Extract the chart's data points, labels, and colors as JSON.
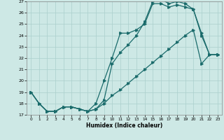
{
  "xlabel": "Humidex (Indice chaleur)",
  "xlim": [
    -0.5,
    23.5
  ],
  "ylim": [
    17,
    27
  ],
  "yticks": [
    17,
    18,
    19,
    20,
    21,
    22,
    23,
    24,
    25,
    26,
    27
  ],
  "xticks": [
    0,
    1,
    2,
    3,
    4,
    5,
    6,
    7,
    8,
    9,
    10,
    11,
    12,
    13,
    14,
    15,
    16,
    17,
    18,
    19,
    20,
    21,
    22,
    23
  ],
  "background_color": "#cde8e5",
  "grid_color": "#aacfcc",
  "line_color": "#1a6b6b",
  "line1_x": [
    0,
    1,
    2,
    3,
    4,
    5,
    6,
    7,
    8,
    9,
    10,
    11,
    12,
    13,
    14,
    15,
    16,
    17,
    18,
    19,
    20,
    21,
    22,
    23
  ],
  "line1_y": [
    19,
    18,
    17.3,
    17.3,
    17.7,
    17.7,
    17.5,
    17.3,
    18.0,
    20.0,
    22.0,
    24.2,
    24.2,
    24.5,
    25.0,
    26.8,
    26.8,
    26.5,
    26.7,
    26.5,
    26.3,
    24.2,
    22.3,
    22.3
  ],
  "line2_x": [
    0,
    1,
    2,
    3,
    4,
    5,
    6,
    7,
    8,
    9,
    10,
    11,
    12,
    13,
    14,
    15,
    16,
    17,
    18,
    19,
    20,
    21,
    22,
    23
  ],
  "line2_y": [
    19,
    18,
    17.3,
    17.3,
    17.7,
    17.7,
    17.5,
    17.3,
    17.5,
    18.3,
    21.5,
    22.5,
    23.2,
    24.0,
    25.2,
    27.0,
    27.2,
    26.8,
    27.0,
    26.8,
    26.3,
    24.0,
    22.3,
    22.3
  ],
  "line3_x": [
    0,
    1,
    2,
    3,
    4,
    5,
    6,
    7,
    8,
    9,
    10,
    11,
    12,
    13,
    14,
    15,
    16,
    17,
    18,
    19,
    20,
    21,
    22,
    23
  ],
  "line3_y": [
    19,
    18,
    17.3,
    17.3,
    17.7,
    17.7,
    17.5,
    17.3,
    17.5,
    18.0,
    18.7,
    19.2,
    19.8,
    20.4,
    21.0,
    21.6,
    22.2,
    22.8,
    23.4,
    24.0,
    24.5,
    21.5,
    22.3,
    22.3
  ]
}
